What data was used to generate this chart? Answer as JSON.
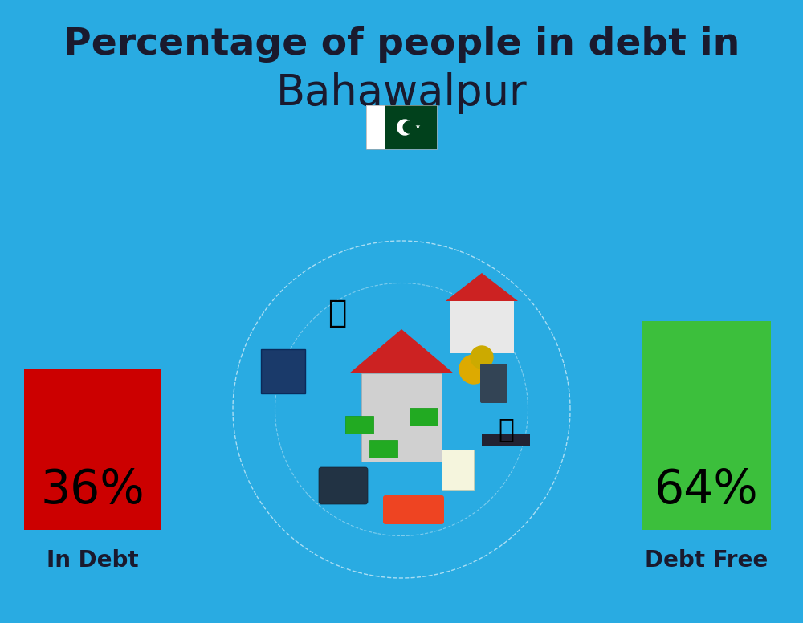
{
  "title_line1": "Percentage of people in debt in",
  "title_line2": "Bahawalpur",
  "background_color": "#29ABE2",
  "bar_left_label": "In Debt",
  "bar_left_color": "#CC0000",
  "bar_left_pct": "36%",
  "bar_right_label": "Debt Free",
  "bar_right_color": "#3CBF3C",
  "bar_right_pct": "64%",
  "title_color": "#1a1a2e",
  "label_color": "#1a1a2e",
  "pct_color": "#000000",
  "title_fontsize": 34,
  "subtitle_fontsize": 38,
  "pct_fontsize": 42,
  "label_fontsize": 20,
  "flag_white": "#FFFFFF",
  "flag_green": "#01411C",
  "fig_width": 10.0,
  "fig_height": 7.76,
  "dpi": 100
}
